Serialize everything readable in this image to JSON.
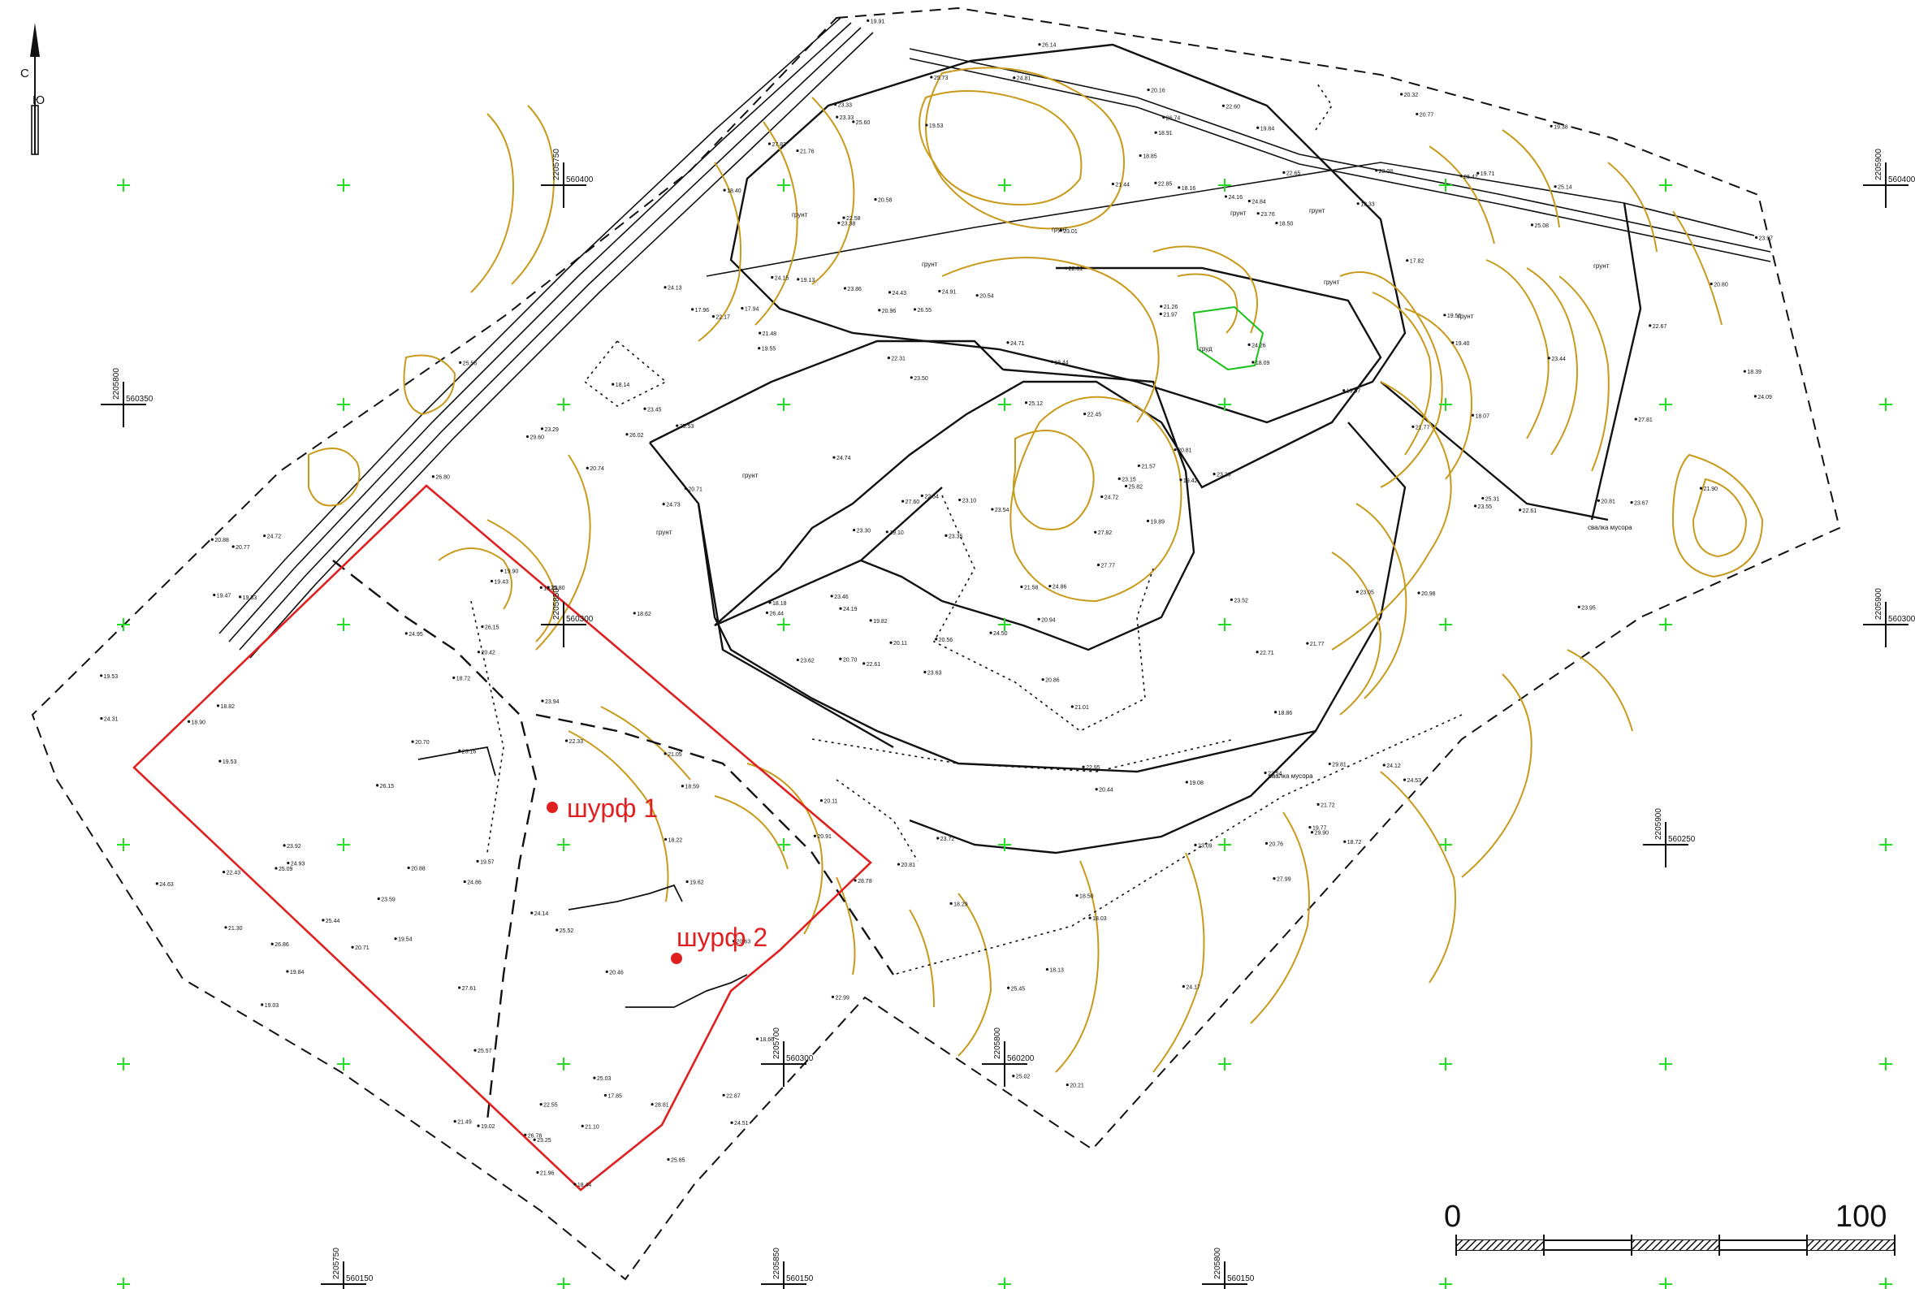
{
  "north_arrow": {
    "top_letter": "С",
    "bottom_letter": "Ю",
    "icon": "north-arrow-icon"
  },
  "pits": [
    {
      "label": "шурф 1"
    },
    {
      "label": "шурф 2"
    }
  ],
  "scale_bar": {
    "start_label": "0",
    "end_label": "100"
  },
  "grid_labels": [
    "560400",
    "560350",
    "560300",
    "560250",
    "560200",
    "560150",
    "2205700",
    "2205750",
    "2205800",
    "2205850",
    "2205900"
  ],
  "land_labels": [
    "грунт",
    "грунт",
    "грунт",
    "грунт",
    "грунт",
    "грунт",
    "грунт",
    "грунт",
    "грунт",
    "грунт",
    "груд",
    "свалка мусора",
    "свалка мусора"
  ],
  "spot_heights": [
    "23.63",
    "24.19",
    "24.72",
    "25.52",
    "22.60",
    "24.91",
    "24.84",
    "24.86",
    "24.72",
    "23.97",
    "23.62",
    "24.26",
    "23.86",
    "25.12",
    "25.44",
    "25.53",
    "25.57",
    "24.43",
    "25.82",
    "24.53",
    "25.60",
    "22.54",
    "24.09",
    "23.46",
    "22.99",
    "23.30",
    "23.08",
    "24.14",
    "24.12",
    "26.14",
    "26.02",
    "26.80",
    "27.99",
    "26.78",
    "27.82",
    "27.77",
    "26.86",
    "22.67",
    "29.90",
    "27.61",
    "25.45",
    "25.14",
    "25.73",
    "25.80",
    "25.56",
    "26.47",
    "26.74",
    "27.83",
    "27.60",
    "28.78",
    "28.81",
    "29.81",
    "29.60",
    "24.31",
    "24.74",
    "25.02",
    "23.54",
    "23.52",
    "23.67",
    "23.72",
    "24.17",
    "23.33",
    "23.29",
    "23.35",
    "24.16",
    "23.76",
    "24.95",
    "26.15",
    "24.86",
    "25.03",
    "23.15",
    "25.08",
    "24.73",
    "26.55",
    "26.44",
    "24.63",
    "22.61",
    "24.15",
    "25.09",
    "24.71",
    "24.13",
    "23.05",
    "23.16",
    "24.51",
    "25.31",
    "24.93",
    "23.29",
    "23.94",
    "23.92",
    "23.45",
    "20.86",
    "24.50",
    "21.57",
    "22.87",
    "23.33",
    "27.81",
    "25.85",
    "24.81",
    "20.58",
    "23.50",
    "26.15",
    "22.61",
    "20.44",
    "19.53",
    "19.91",
    "18.91",
    "20.11",
    "20.21",
    "20.16",
    "20.81",
    "21.10",
    "21.44",
    "20.76",
    "20.56",
    "20.46",
    "19.82",
    "19.62",
    "20.96",
    "19.56",
    "19.89",
    "19.33",
    "19.13",
    "20.88",
    "20.77",
    "20.32",
    "19.55",
    "19.87",
    "20.70",
    "20.91",
    "20.77",
    "20.80",
    "20.74",
    "20.81",
    "20.63",
    "20.71",
    "21.01",
    "21.05",
    "20.88",
    "20.54",
    "21.26",
    "19.02",
    "19.57",
    "19.42",
    "19.38",
    "18.44",
    "18.72",
    "18.85",
    "19.90",
    "19.47",
    "19.53",
    "19.77",
    "18.39",
    "18.29",
    "18.03",
    "18.09",
    "18.07",
    "17.94",
    "17.85",
    "18.14",
    "17.82",
    "18.22",
    "18.13",
    "18.44",
    "18.86",
    "19.10",
    "18.40",
    "17.96",
    "18.73",
    "18.50",
    "18.82",
    "18.62",
    "18.90",
    "18.18",
    "18.16",
    "19.43",
    "19.08",
    "19.54",
    "18.59",
    "18.50",
    "18.66",
    "18.72",
    "19.53",
    "19.40",
    "19.71",
    "19.03",
    "20.11",
    "19.84",
    "19.33",
    "19.84",
    "20.70",
    "20.94",
    "21.77",
    "21.48",
    "21.49",
    "20.71",
    "21.76",
    "22.95",
    "23.10",
    "22.43",
    "22.55",
    "23.59",
    "22.45",
    "23.09",
    "22.65",
    "23.95",
    "23.55",
    "23.01",
    "23.44",
    "21.77",
    "21.30",
    "21.90",
    "22.61",
    "21.97",
    "22.58",
    "22.54",
    "22.31",
    "22.33",
    "21.58",
    "20.98",
    "20.42",
    "22.71",
    "22.17",
    "22.85",
    "23.25",
    "23.38",
    "20.81",
    "21.96",
    "21.72"
  ]
}
